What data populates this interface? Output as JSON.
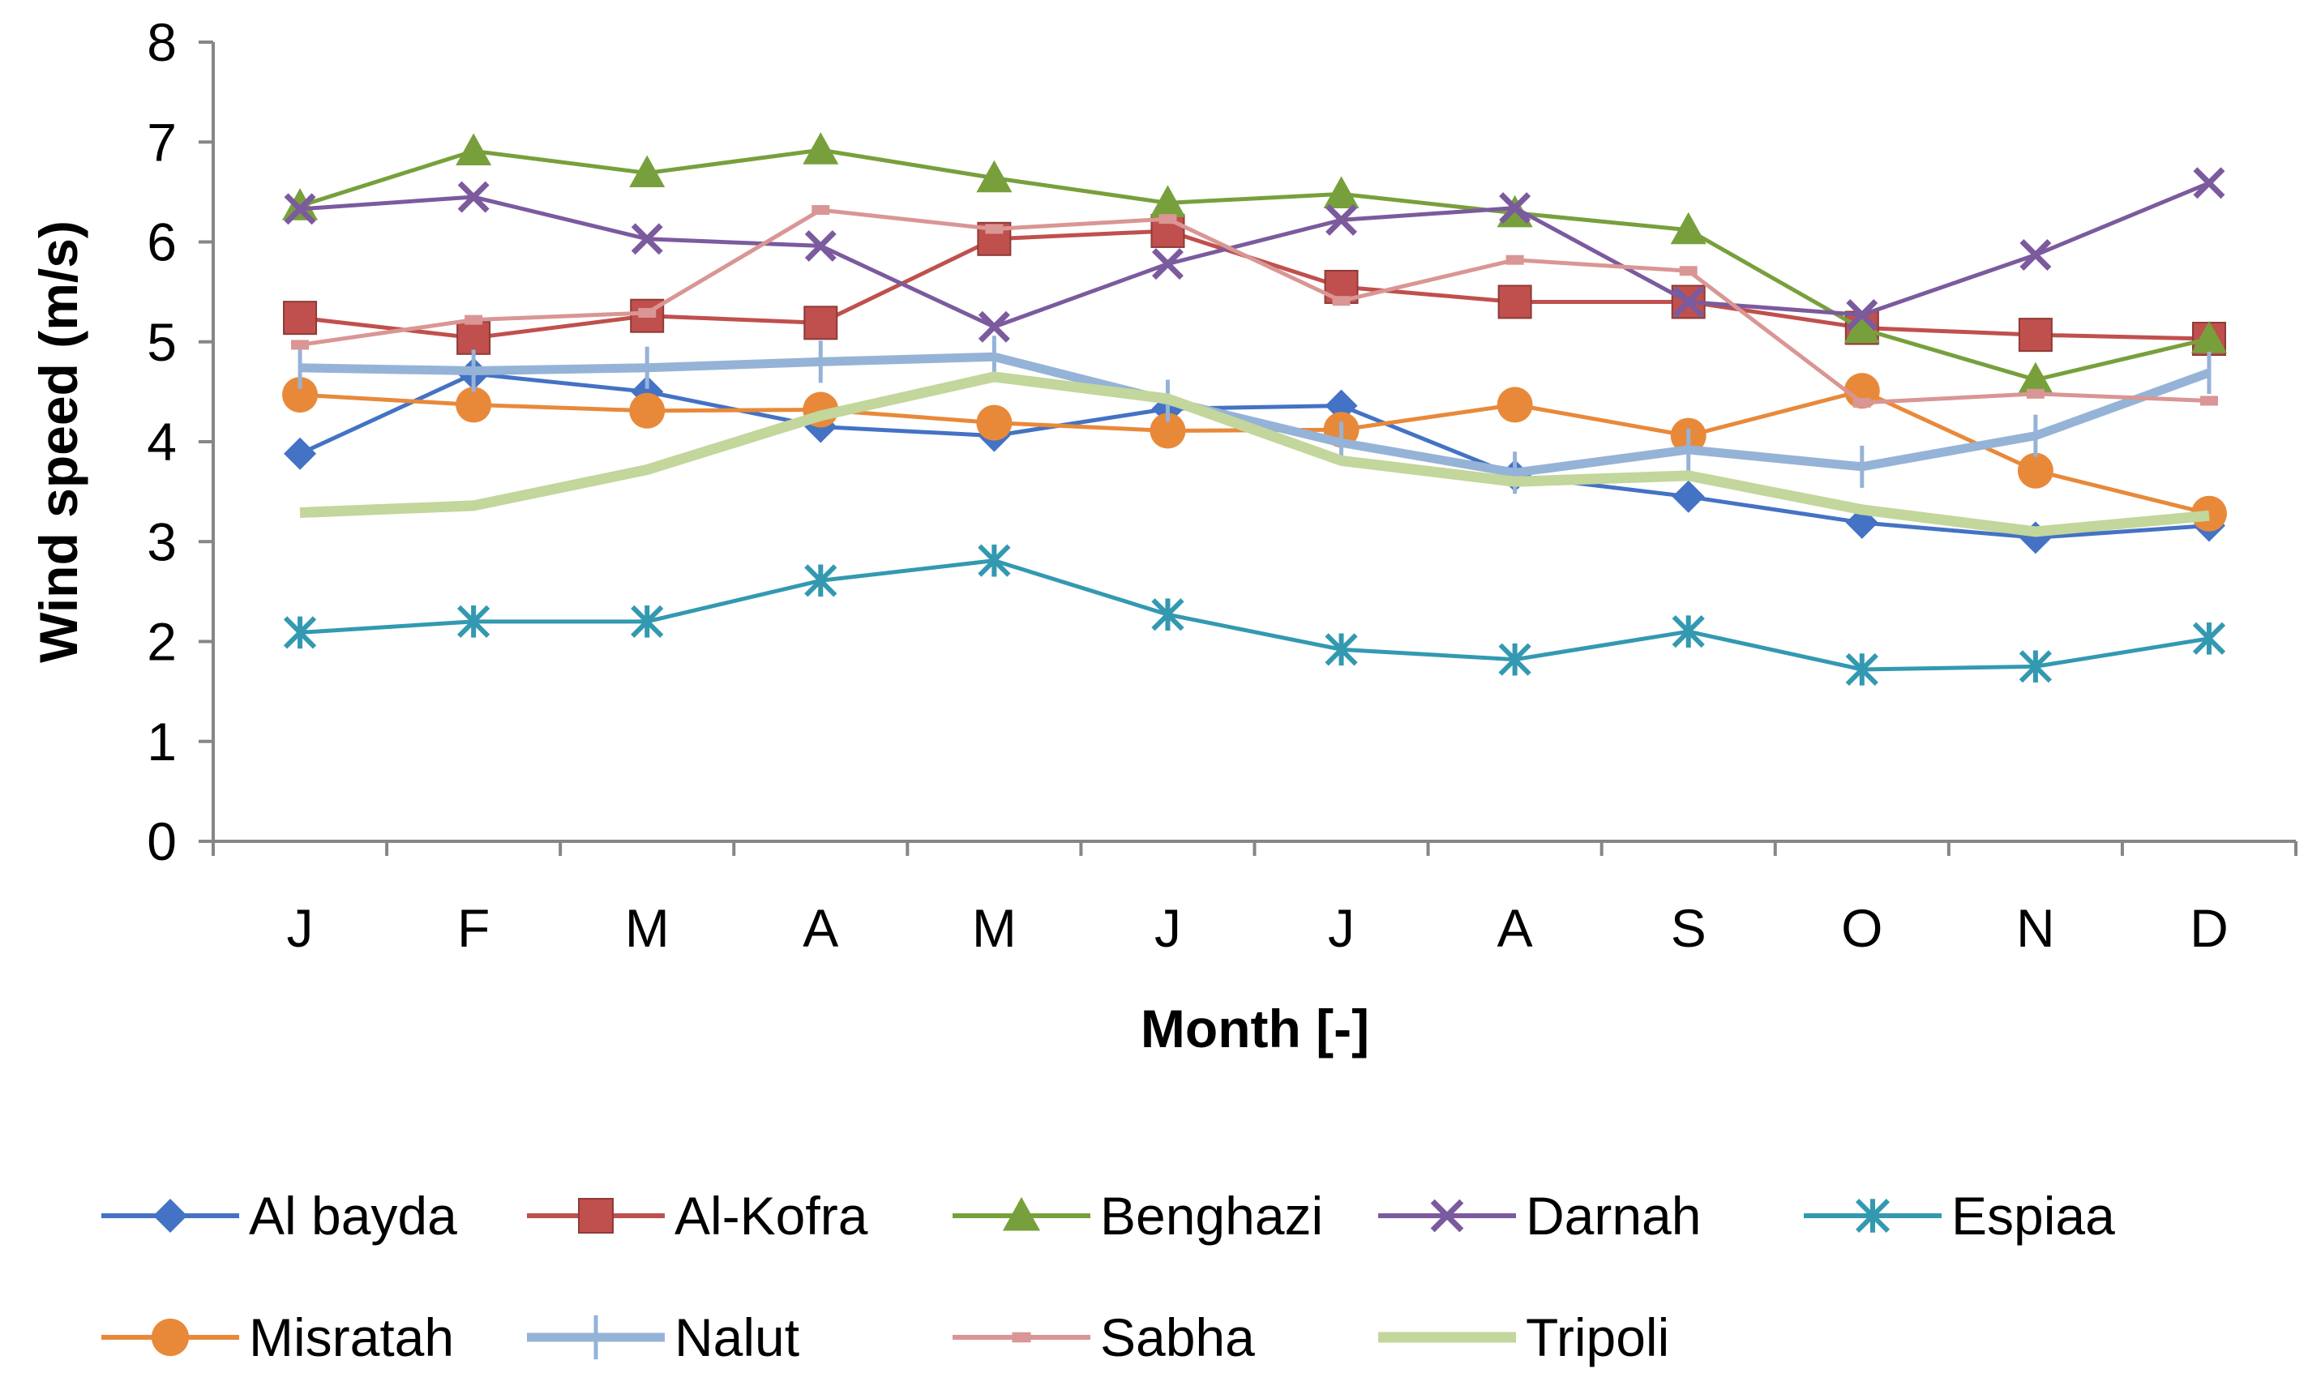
{
  "chart_data": {
    "type": "line",
    "title": "",
    "xlabel": "Month [-]",
    "ylabel": "Wind speed (m/s)",
    "ylim": [
      0,
      8
    ],
    "yticks": [
      "0",
      "1",
      "2",
      "3",
      "4",
      "5",
      "6",
      "7",
      "8"
    ],
    "categories": [
      "J",
      "F",
      "M",
      "A",
      "M",
      "J",
      "J",
      "A",
      "S",
      "O",
      "N",
      "D"
    ],
    "grid": false,
    "legend_position": "bottom",
    "series": [
      {
        "name": "Al bayda",
        "color": "#4472C4",
        "marker": "diamond",
        "values": [
          3.88,
          4.68,
          4.5,
          4.15,
          4.06,
          4.33,
          4.36,
          3.66,
          3.45,
          3.19,
          3.04,
          3.16
        ]
      },
      {
        "name": "Al-Kofra",
        "color": "#C0504D",
        "marker": "square",
        "values": [
          5.24,
          5.04,
          5.26,
          5.19,
          6.03,
          6.11,
          5.55,
          5.4,
          5.4,
          5.14,
          5.07,
          5.03
        ]
      },
      {
        "name": "Benghazi",
        "color": "#77A03C",
        "marker": "triangle",
        "values": [
          6.36,
          6.91,
          6.69,
          6.92,
          6.64,
          6.39,
          6.48,
          6.29,
          6.12,
          5.13,
          4.62,
          5.03
        ]
      },
      {
        "name": "Darnah",
        "color": "#7B5A9E",
        "marker": "x",
        "values": [
          6.33,
          6.45,
          6.03,
          5.96,
          5.15,
          5.78,
          6.22,
          6.34,
          5.4,
          5.27,
          5.87,
          6.59
        ]
      },
      {
        "name": "Espiaa",
        "color": "#3399B1",
        "marker": "star",
        "values": [
          2.09,
          2.2,
          2.2,
          2.61,
          2.81,
          2.27,
          1.92,
          1.82,
          2.1,
          1.72,
          1.75,
          2.03
        ]
      },
      {
        "name": "Misratah",
        "color": "#E8893A",
        "marker": "circle",
        "values": [
          4.47,
          4.37,
          4.31,
          4.32,
          4.19,
          4.11,
          4.12,
          4.37,
          4.06,
          4.51,
          3.71,
          3.28
        ]
      },
      {
        "name": "Nalut",
        "color": "#95B3D7",
        "marker": "plus",
        "values": [
          4.74,
          4.71,
          4.74,
          4.8,
          4.85,
          4.41,
          3.99,
          3.69,
          3.92,
          3.75,
          4.06,
          4.69
        ]
      },
      {
        "name": "Sabha",
        "color": "#D99694",
        "marker": "dash",
        "values": [
          4.97,
          5.22,
          5.29,
          6.32,
          6.13,
          6.23,
          5.41,
          5.82,
          5.71,
          4.39,
          4.48,
          4.41
        ]
      },
      {
        "name": "Tripoli",
        "color": "#C3D69B",
        "marker": "none",
        "values": [
          3.29,
          3.36,
          3.72,
          4.26,
          4.65,
          4.43,
          3.81,
          3.6,
          3.66,
          3.32,
          3.1,
          3.26
        ]
      }
    ]
  }
}
